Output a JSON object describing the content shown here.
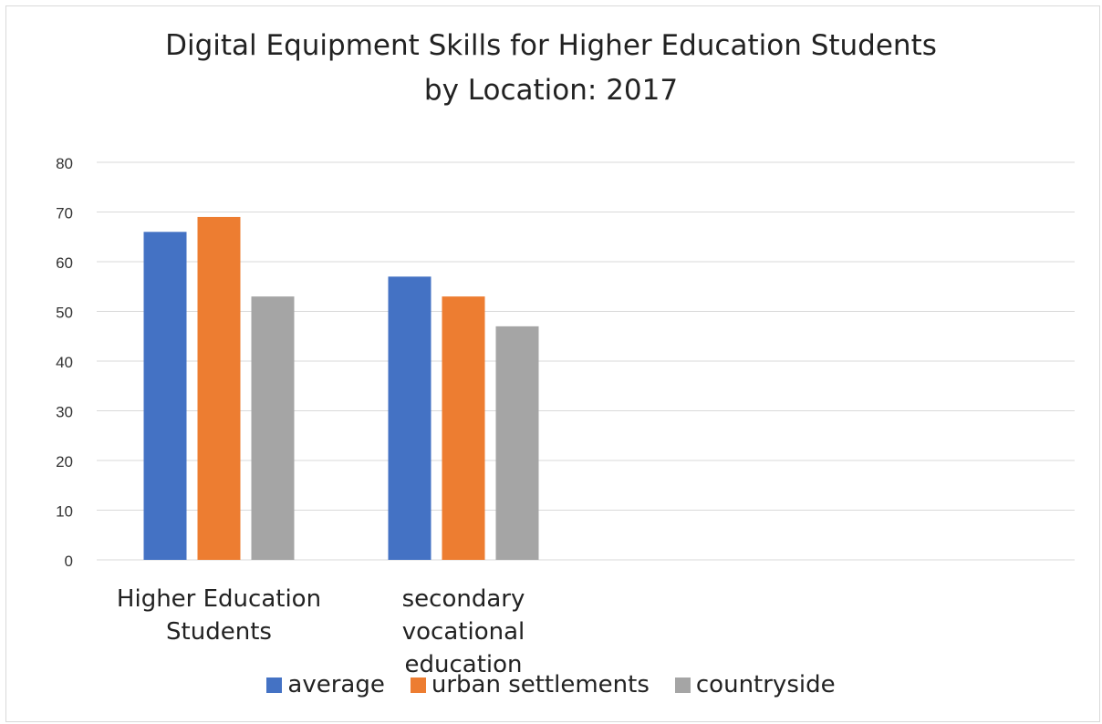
{
  "chart_data": {
    "type": "bar",
    "title_line1": "Digital Equipment Skills for Higher Education Students",
    "title_line2": "by Location: 2017",
    "categories": [
      [
        "Higher Education",
        "Students"
      ],
      [
        "secondary",
        "vocational",
        "education"
      ],
      [],
      []
    ],
    "series": [
      {
        "name": "average",
        "color": "#4472c4",
        "values": [
          66,
          57,
          null,
          null
        ]
      },
      {
        "name": "urban settlements",
        "color": "#ed7d31",
        "values": [
          69,
          53,
          null,
          null
        ]
      },
      {
        "name": "countryside",
        "color": "#a5a5a5",
        "values": [
          53,
          47,
          null,
          null
        ]
      }
    ],
    "ylim": [
      0,
      80
    ],
    "yticks": [
      "0",
      "10",
      "20",
      "30",
      "40",
      "50",
      "60",
      "70",
      "80"
    ],
    "grid": true,
    "legend_position": "bottom"
  }
}
